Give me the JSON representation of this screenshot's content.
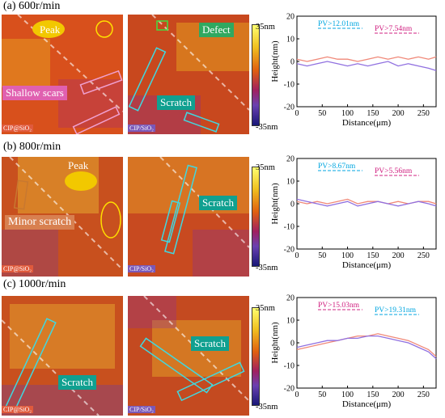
{
  "rows": [
    {
      "title": "(a) 600r/min",
      "left_tag": "CIP@SiO₂",
      "right_tag": "CIP/SiO₂",
      "colorbar": {
        "max": "35nm",
        "min": "-35nm"
      },
      "left_labels": {
        "peak": "Peak",
        "scars": "Shallow scars"
      },
      "right_labels": {
        "defect": "Defect",
        "scratch": "Scratch"
      }
    },
    {
      "title": "(b) 800r/min",
      "left_tag": "CIP@SiO₂",
      "right_tag": "CIP/SiO₂",
      "colorbar": {
        "max": "35nm",
        "min": "-35nm"
      },
      "left_labels": {
        "peak": "Peak",
        "minor": "Minor scratch"
      },
      "right_labels": {
        "scratch": "Scratch"
      }
    },
    {
      "title": "(c) 1000r/min",
      "left_tag": "CIP@SiO₂",
      "right_tag": "CIP/SiO₂",
      "colorbar": {
        "max": "35nm",
        "min": "-35nm"
      },
      "left_labels": {
        "scratch": "Scratch"
      },
      "right_labels": {
        "scratch": "Scratch"
      }
    }
  ],
  "colors": {
    "cip_at_sio2": "#f08878",
    "cip_sio2": "#9070e0",
    "pv_blue": "#00a6e0",
    "pv_pink": "#d02080"
  },
  "chart_data": [
    {
      "type": "line",
      "xlabel": "Distance(μm)",
      "ylabel": "Height(nm)",
      "xlim": [
        0,
        275
      ],
      "ylim": [
        -20,
        20
      ],
      "xticks": [
        0,
        50,
        100,
        150,
        200,
        250
      ],
      "yticks": [
        -20,
        -10,
        0,
        10,
        20
      ],
      "series": [
        {
          "color": "#f08878",
          "x": [
            0,
            20,
            40,
            60,
            80,
            100,
            120,
            140,
            160,
            180,
            200,
            220,
            240,
            260,
            275
          ],
          "y": [
            1,
            0,
            1,
            2,
            1,
            1,
            0,
            1,
            2,
            1,
            2,
            1,
            2,
            1,
            2
          ]
        },
        {
          "color": "#9070e0",
          "x": [
            0,
            20,
            40,
            60,
            80,
            100,
            120,
            140,
            160,
            180,
            200,
            220,
            240,
            260,
            275
          ],
          "y": [
            -1,
            -2,
            -1,
            0,
            -1,
            -2,
            -1,
            -2,
            -1,
            0,
            -2,
            -1,
            -2,
            -3,
            -4
          ]
        }
      ],
      "annotations": [
        {
          "text": "PV>12.01nm",
          "color": "#00a6e0"
        },
        {
          "text": "PV>7.54nm",
          "color": "#d02080"
        }
      ]
    },
    {
      "type": "line",
      "xlabel": "Distance(μm)",
      "ylabel": "Height(nm)",
      "xlim": [
        0,
        275
      ],
      "ylim": [
        -20,
        20
      ],
      "xticks": [
        0,
        50,
        100,
        150,
        200,
        250
      ],
      "yticks": [
        -20,
        -10,
        0,
        10,
        20
      ],
      "series": [
        {
          "color": "#f08878",
          "x": [
            0,
            20,
            40,
            60,
            80,
            100,
            120,
            140,
            160,
            180,
            200,
            220,
            240,
            260,
            275
          ],
          "y": [
            1,
            0,
            1,
            0,
            1,
            2,
            0,
            1,
            1,
            0,
            1,
            0,
            1,
            1,
            0
          ]
        },
        {
          "color": "#9070e0",
          "x": [
            0,
            20,
            40,
            60,
            80,
            100,
            120,
            140,
            160,
            180,
            200,
            220,
            240,
            260,
            275
          ],
          "y": [
            2,
            1,
            0,
            -1,
            0,
            1,
            -1,
            0,
            1,
            0,
            -1,
            0,
            1,
            0,
            -1
          ]
        }
      ],
      "annotations": [
        {
          "text": "PV>8.67nm",
          "color": "#00a6e0"
        },
        {
          "text": "PV>5.56nm",
          "color": "#d02080"
        }
      ]
    },
    {
      "type": "line",
      "xlabel": "Distance(μm)",
      "ylabel": "Height(nm)",
      "xlim": [
        0,
        275
      ],
      "ylim": [
        -20,
        20
      ],
      "xticks": [
        0,
        50,
        100,
        150,
        200,
        250
      ],
      "yticks": [
        -20,
        -10,
        0,
        10,
        20
      ],
      "series": [
        {
          "color": "#f08878",
          "x": [
            0,
            20,
            40,
            60,
            80,
            100,
            120,
            140,
            160,
            180,
            200,
            220,
            240,
            260,
            275
          ],
          "y": [
            -3,
            -2,
            -1,
            0,
            1,
            2,
            3,
            3,
            4,
            3,
            2,
            1,
            -1,
            -3,
            -6
          ]
        },
        {
          "color": "#9070e0",
          "x": [
            0,
            20,
            40,
            60,
            80,
            100,
            120,
            140,
            160,
            180,
            200,
            220,
            240,
            260,
            275
          ],
          "y": [
            -2,
            -1,
            0,
            1,
            1,
            2,
            2,
            3,
            3,
            2,
            1,
            0,
            -2,
            -4,
            -7
          ]
        }
      ],
      "annotations": [
        {
          "text": "PV>15.03nm",
          "color": "#d02080"
        },
        {
          "text": "PV>19.31nm",
          "color": "#00a6e0"
        }
      ]
    }
  ]
}
